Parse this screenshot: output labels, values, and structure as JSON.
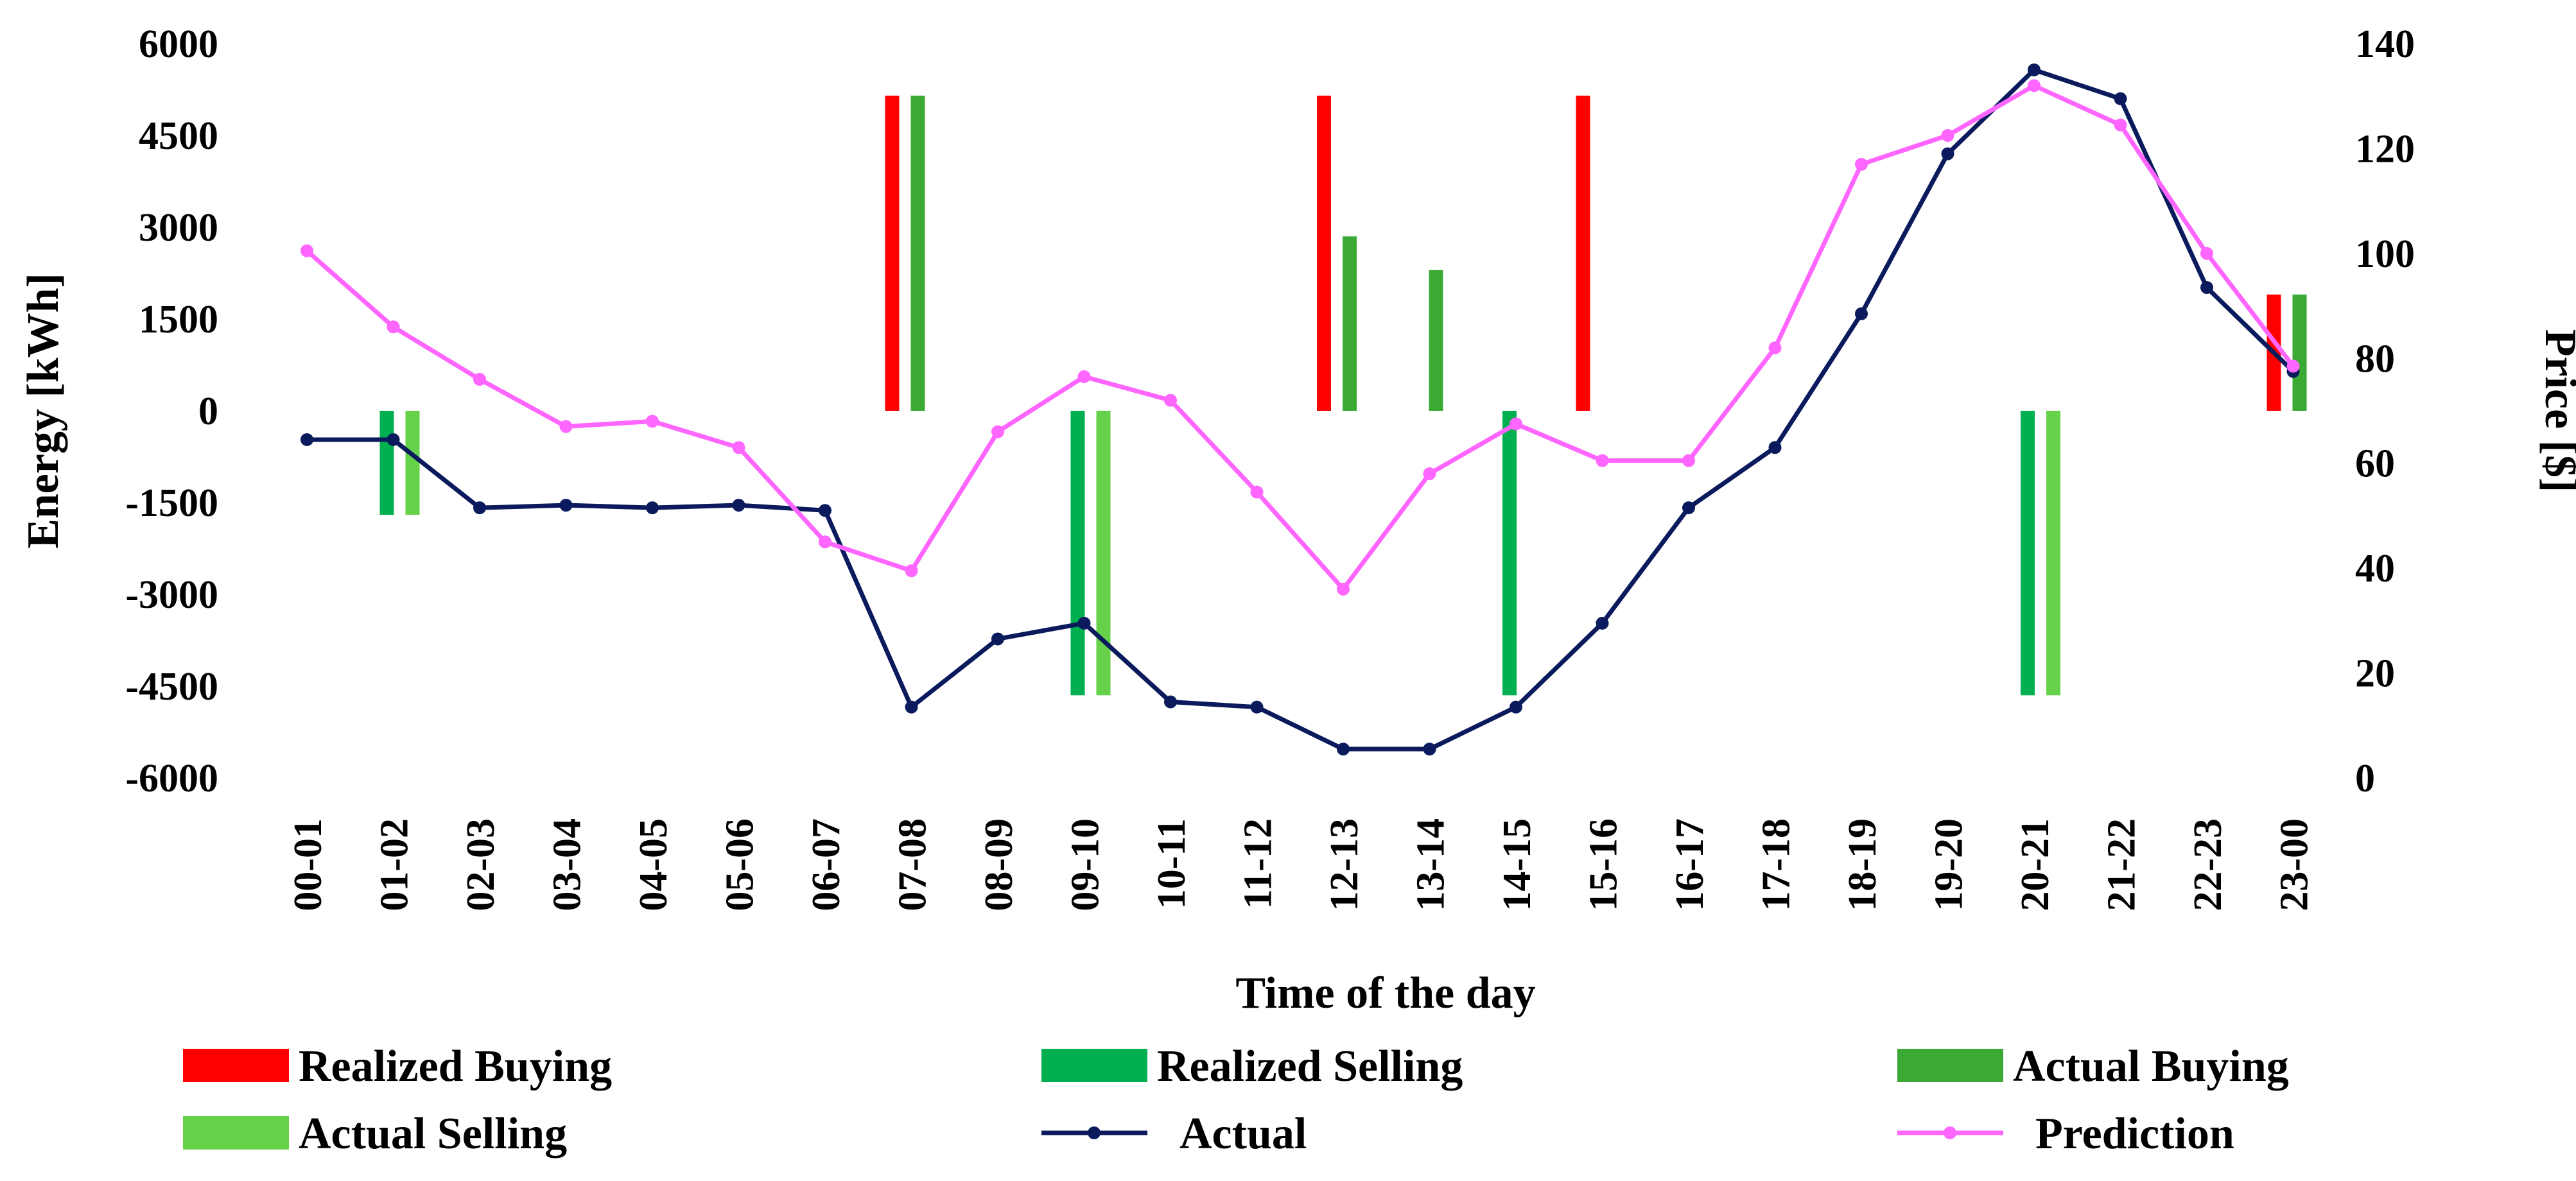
{
  "chart_data": {
    "type": "bar+line",
    "xlabel": "Time of the day",
    "ylabel": "Energy [kWh]",
    "y2label": "Price [$]",
    "ylim": [
      -6000,
      6000
    ],
    "y_ticks": [
      6000,
      4500,
      3000,
      1500,
      0,
      -1500,
      -3000,
      -4500,
      -6000
    ],
    "y2lim": [
      0,
      140
    ],
    "y2_ticks": [
      140,
      120,
      100,
      80,
      60,
      40,
      20,
      0
    ],
    "categories": [
      "00-01",
      "01-02",
      "02-03",
      "03-04",
      "04-05",
      "05-06",
      "06-07",
      "07-08",
      "08-09",
      "09-10",
      "10-11",
      "11-12",
      "12-13",
      "13-14",
      "14-15",
      "15-16",
      "16-17",
      "17-18",
      "18-19",
      "19-20",
      "20-21",
      "21-22",
      "22-23",
      "23-00"
    ],
    "bar_series": [
      {
        "name": "Realized Buying",
        "color": "#ff0000",
        "values": [
          0,
          0,
          0,
          0,
          0,
          0,
          0,
          5150,
          0,
          0,
          0,
          0,
          5150,
          0,
          0,
          5150,
          0,
          0,
          0,
          0,
          0,
          0,
          0,
          1900
        ]
      },
      {
        "name": "Realized Selling",
        "color": "#00b050",
        "values": [
          0,
          -1700,
          0,
          0,
          0,
          0,
          0,
          0,
          0,
          -4650,
          0,
          0,
          0,
          0,
          -4650,
          0,
          0,
          0,
          0,
          0,
          -4650,
          0,
          0,
          0
        ]
      },
      {
        "name": "Actual Buying",
        "color": "#3aaa35",
        "values": [
          0,
          0,
          0,
          0,
          0,
          0,
          0,
          5150,
          0,
          0,
          0,
          0,
          2850,
          2300,
          0,
          0,
          0,
          0,
          0,
          0,
          0,
          0,
          0,
          1900
        ]
      },
      {
        "name": "Actual Selling",
        "color": "#66d24a",
        "values": [
          0,
          -1700,
          0,
          0,
          0,
          0,
          0,
          0,
          0,
          -4650,
          0,
          0,
          0,
          0,
          0,
          0,
          0,
          0,
          0,
          0,
          -4650,
          0,
          0,
          0
        ]
      }
    ],
    "line_series": [
      {
        "name": "Actual",
        "color": "#0a1a5c",
        "axis": "right",
        "values": [
          64.5,
          64.5,
          51.5,
          52,
          51.5,
          52,
          51,
          13.5,
          26.5,
          29.5,
          14.5,
          13.5,
          5.5,
          5.5,
          13.5,
          29.5,
          51.5,
          63,
          88.5,
          119,
          135,
          129.5,
          93.5,
          77.5
        ]
      },
      {
        "name": "Prediction",
        "color": "#ff66ff",
        "axis": "right",
        "values": [
          100.5,
          86,
          76,
          67,
          68,
          63,
          45,
          39.5,
          66,
          76.5,
          72,
          54.5,
          36,
          58,
          67.5,
          60.5,
          60.5,
          82,
          117,
          122.5,
          132,
          124.5,
          100,
          78.5
        ]
      }
    ],
    "legend": [
      "Realized Buying",
      "Realized Selling",
      "Actual Buying",
      "Actual Selling",
      "Actual",
      "Prediction"
    ],
    "legend_position": "bottom",
    "grid": false
  }
}
